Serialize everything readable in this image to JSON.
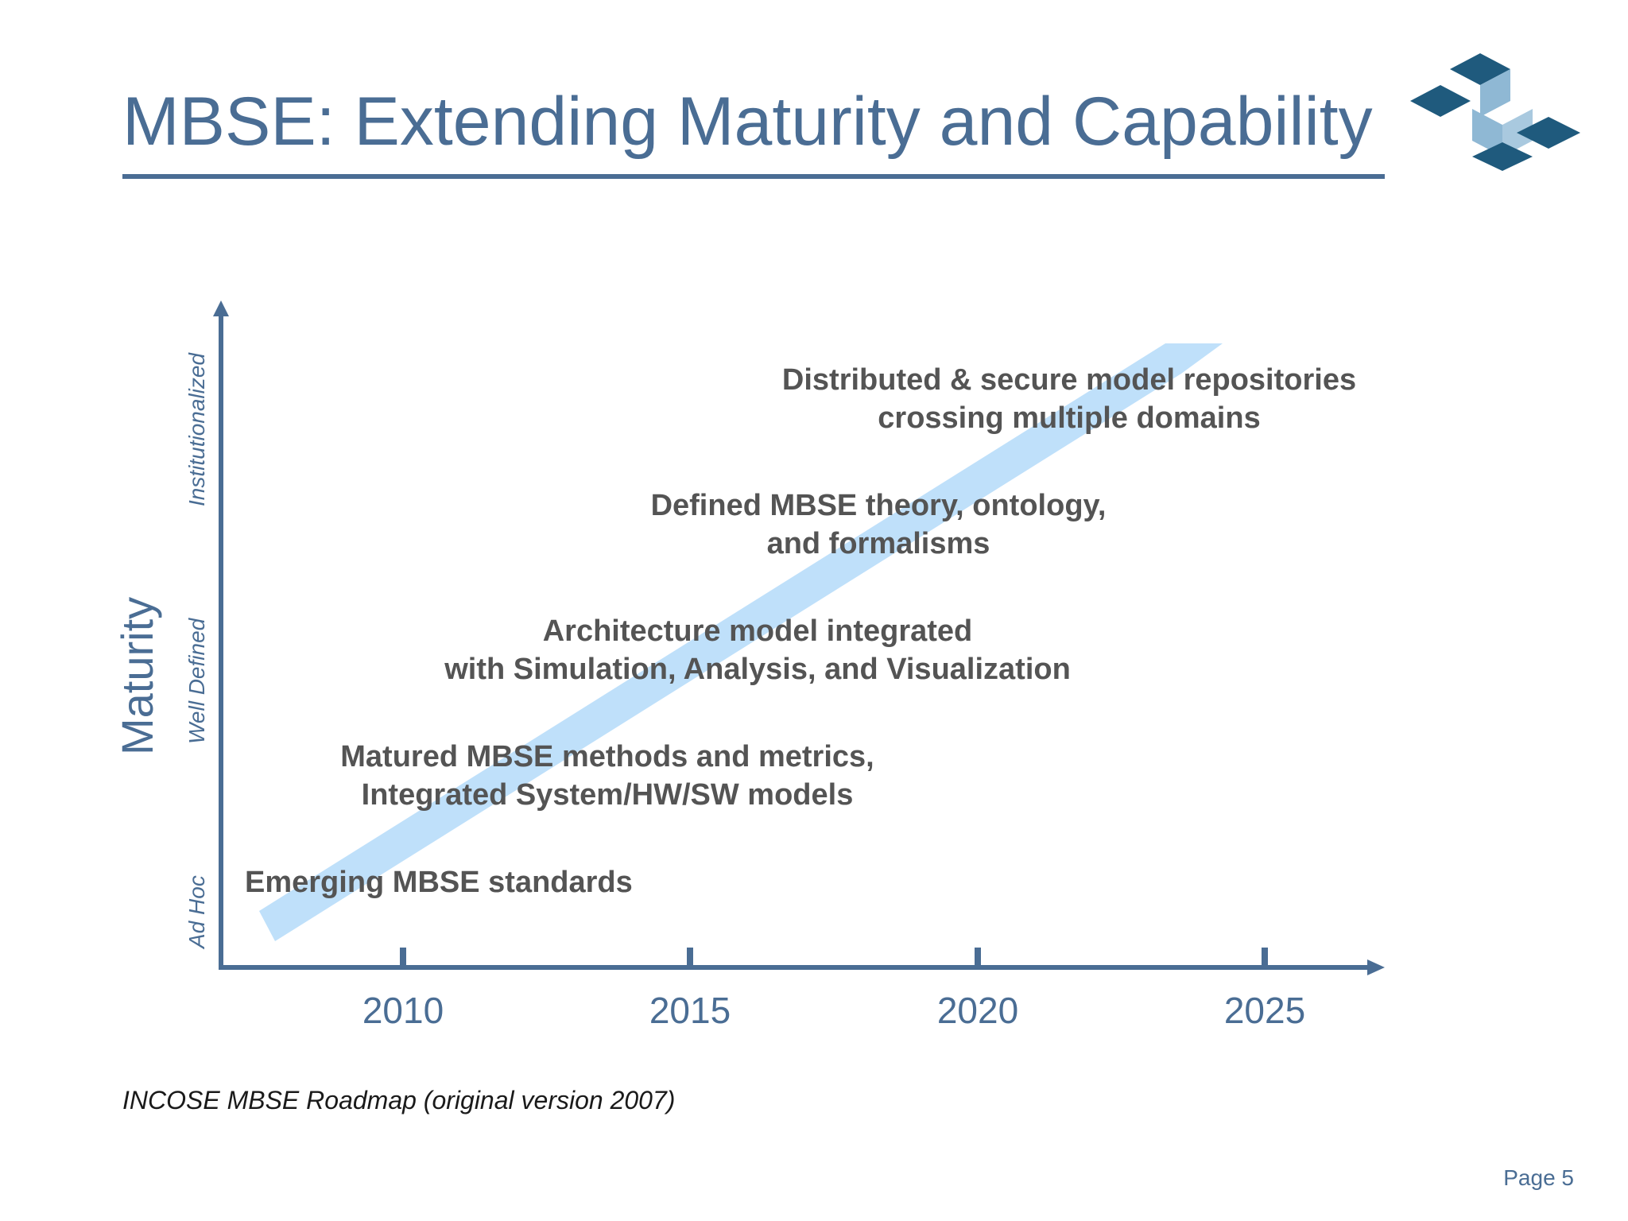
{
  "slide": {
    "title": "MBSE: Extending Maturity and Capability",
    "caption": "INCOSE MBSE Roadmap (original version 2007)",
    "page_label": "Page 5"
  },
  "colors": {
    "title": "#4a6d94",
    "axis": "#4a6d94",
    "arrow": "#bfe0fa",
    "milestone_text": "#545454",
    "logo_dark": "#1f5a7d",
    "logo_light": "#8fb8d4"
  },
  "logo": {
    "name": "incose-logo-icon"
  },
  "diagram": {
    "y_axis_label": "Maturity",
    "maturity_levels": [
      "Ad Hoc",
      "Well Defined",
      "Institutionalized"
    ],
    "years": [
      "2010",
      "2015",
      "2020",
      "2025"
    ],
    "milestones": [
      {
        "line1": "Emerging MBSE standards",
        "line2": ""
      },
      {
        "line1": "Matured MBSE methods and metrics,",
        "line2": "Integrated  System/HW/SW models"
      },
      {
        "line1": "Architecture model integrated",
        "line2": "with Simulation, Analysis, and Visualization"
      },
      {
        "line1": "Defined MBSE theory, ontology,",
        "line2": "and formalisms"
      },
      {
        "line1": "Distributed & secure model repositories",
        "line2": "crossing multiple domains"
      }
    ]
  }
}
